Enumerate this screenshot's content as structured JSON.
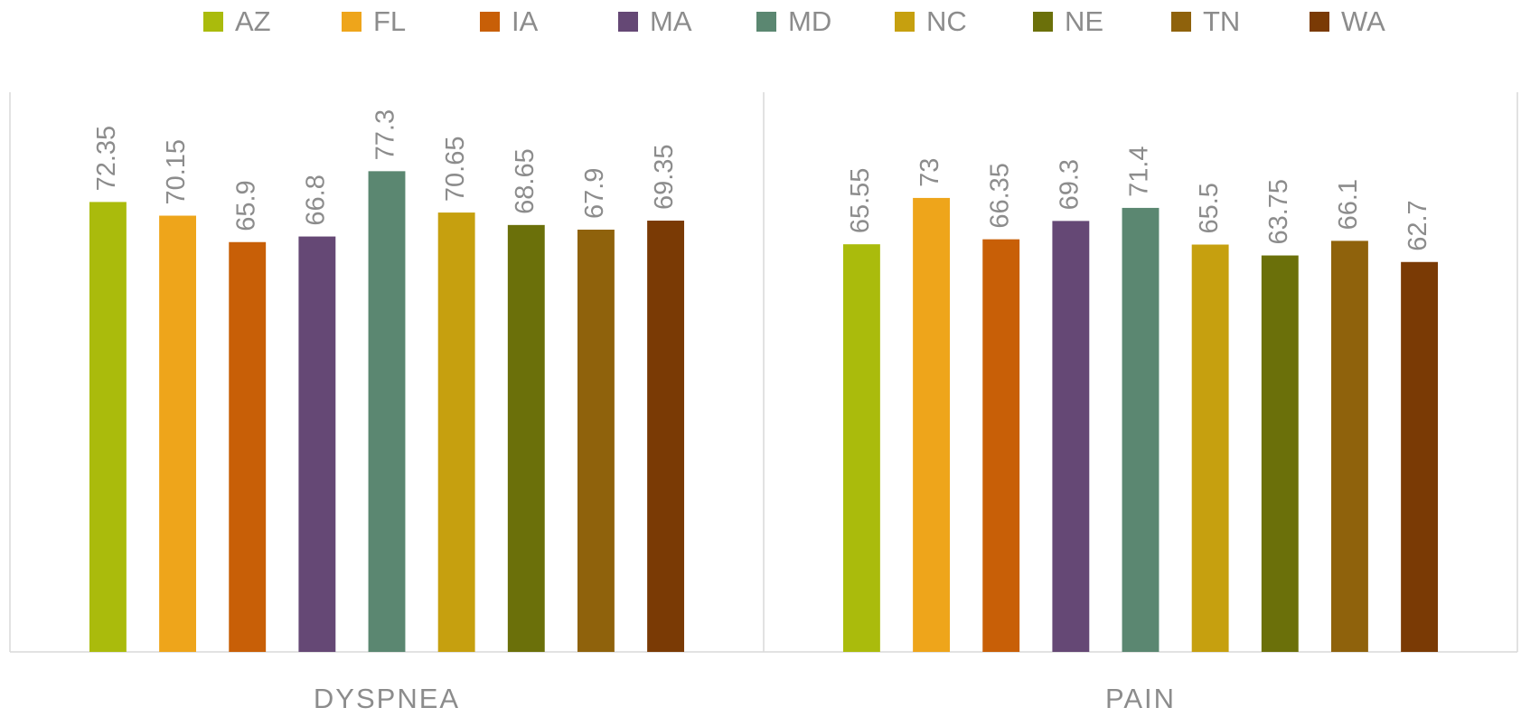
{
  "chart_data": {
    "type": "bar",
    "categories": [
      "DYSPNEA",
      "PAIN"
    ],
    "series": [
      {
        "name": "AZ",
        "color": "#aabb0c",
        "values": [
          72.35,
          65.55
        ]
      },
      {
        "name": "FL",
        "color": "#eea51b",
        "values": [
          70.15,
          73
        ]
      },
      {
        "name": "IA",
        "color": "#c85f07",
        "values": [
          65.9,
          66.35
        ]
      },
      {
        "name": "MA",
        "color": "#654875",
        "values": [
          66.8,
          69.3
        ]
      },
      {
        "name": "MD",
        "color": "#5b8771",
        "values": [
          77.3,
          71.4
        ]
      },
      {
        "name": "NC",
        "color": "#c6a00f",
        "values": [
          70.65,
          65.5
        ]
      },
      {
        "name": "NE",
        "color": "#6b700a",
        "values": [
          68.65,
          63.75
        ]
      },
      {
        "name": "TN",
        "color": "#8f620c",
        "values": [
          67.9,
          66.1
        ]
      },
      {
        "name": "WA",
        "color": "#7a3a05",
        "values": [
          69.35,
          62.7
        ]
      }
    ],
    "ylim": [
      0,
      90
    ],
    "legend": "top"
  }
}
